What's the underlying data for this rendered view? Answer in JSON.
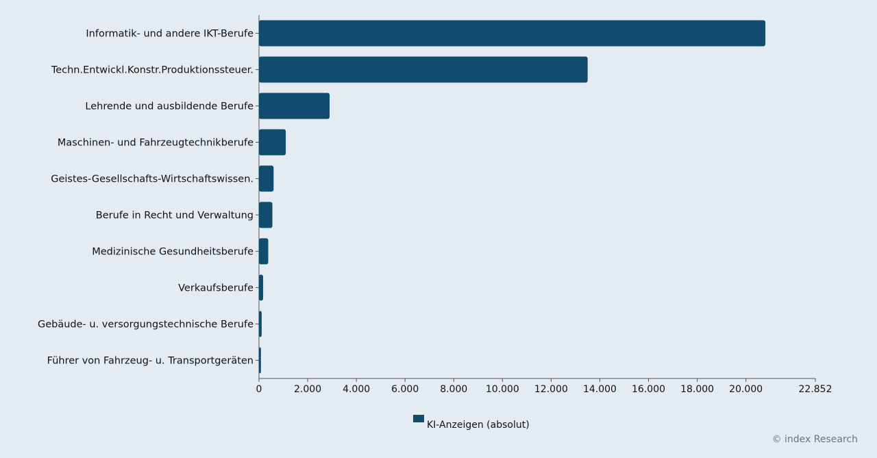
{
  "chart_data": {
    "type": "bar",
    "orientation": "horizontal",
    "categories": [
      "Informatik- und andere IKT-Berufe",
      "Techn.Entwickl.Konstr.Produktionssteuer.",
      "Lehrende und ausbildende Berufe",
      "Maschinen- und Fahrzeugtechnikberufe",
      "Geistes-Gesellschafts-Wirtschaftswissen.",
      "Berufe in Recht und Verwaltung",
      "Medizinische Gesundheitsberufe",
      "Verkaufsberufe",
      "Gebäude- u. versorgungstechnische Berufe",
      "Führer von Fahrzeug- u. Transportgeräten"
    ],
    "series": [
      {
        "name": "KI-Anzeigen (absolut)",
        "values": [
          20800,
          13500,
          2900,
          1100,
          600,
          550,
          380,
          170,
          110,
          80
        ]
      }
    ],
    "xlim": [
      0,
      22852
    ],
    "x_ticks": [
      {
        "value": 0,
        "label": "0"
      },
      {
        "value": 2000,
        "label": "2.000"
      },
      {
        "value": 4000,
        "label": "4.000"
      },
      {
        "value": 6000,
        "label": "6.000"
      },
      {
        "value": 8000,
        "label": "8.000"
      },
      {
        "value": 10000,
        "label": "10.000"
      },
      {
        "value": 12000,
        "label": "12.000"
      },
      {
        "value": 14000,
        "label": "14.000"
      },
      {
        "value": 16000,
        "label": "16.000"
      },
      {
        "value": 18000,
        "label": "18.000"
      },
      {
        "value": 20000,
        "label": "20.000"
      },
      {
        "value": 22852,
        "label": "22.852"
      }
    ],
    "legend_position": "bottom",
    "grid": false,
    "bar_color": "#114c6e",
    "title": "",
    "xlabel": "",
    "ylabel": ""
  },
  "legend": {
    "label": "KI-Anzeigen (absolut)",
    "color": "#114c6e"
  },
  "credit": "© index Research"
}
